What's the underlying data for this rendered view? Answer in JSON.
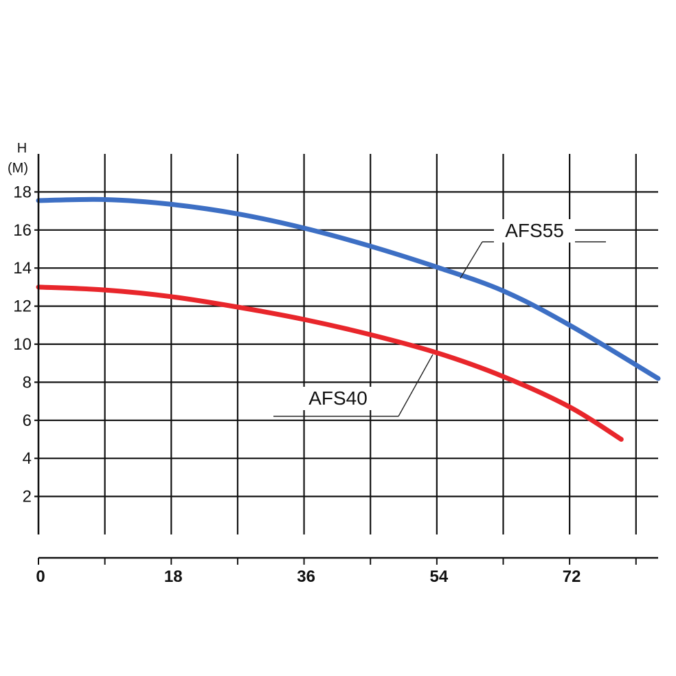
{
  "chart_data": {
    "type": "line",
    "title": "",
    "xlabel": "",
    "ylabel_line1": "H",
    "ylabel_line2": "(M)",
    "xlim": [
      0,
      84
    ],
    "ylim": [
      0,
      20
    ],
    "x_ticks": [
      0,
      18,
      36,
      54,
      72
    ],
    "x_tick_labels": [
      "0",
      "18",
      "36",
      "54",
      "72"
    ],
    "y_ticks": [
      2,
      4,
      6,
      8,
      10,
      12,
      14,
      16,
      18
    ],
    "y_tick_labels": [
      "2",
      "4",
      "6",
      "8",
      "10",
      "12",
      "14",
      "16",
      "18"
    ],
    "x_grid_step": 9,
    "grid": true,
    "series": [
      {
        "name": "AFS55",
        "color": "#3d6fc4",
        "points": [
          [
            0,
            17.55
          ],
          [
            9,
            17.6
          ],
          [
            18,
            17.35
          ],
          [
            27,
            16.85
          ],
          [
            36,
            16.1
          ],
          [
            45,
            15.15
          ],
          [
            54,
            14.05
          ],
          [
            63,
            12.8
          ],
          [
            72,
            11.0
          ],
          [
            84,
            8.2
          ]
        ]
      },
      {
        "name": "AFS40",
        "color": "#e8262b",
        "points": [
          [
            0,
            13.0
          ],
          [
            9,
            12.85
          ],
          [
            18,
            12.5
          ],
          [
            27,
            11.95
          ],
          [
            36,
            11.3
          ],
          [
            45,
            10.5
          ],
          [
            54,
            9.55
          ],
          [
            63,
            8.3
          ],
          [
            72,
            6.7
          ],
          [
            79,
            5.0
          ]
        ]
      }
    ]
  }
}
